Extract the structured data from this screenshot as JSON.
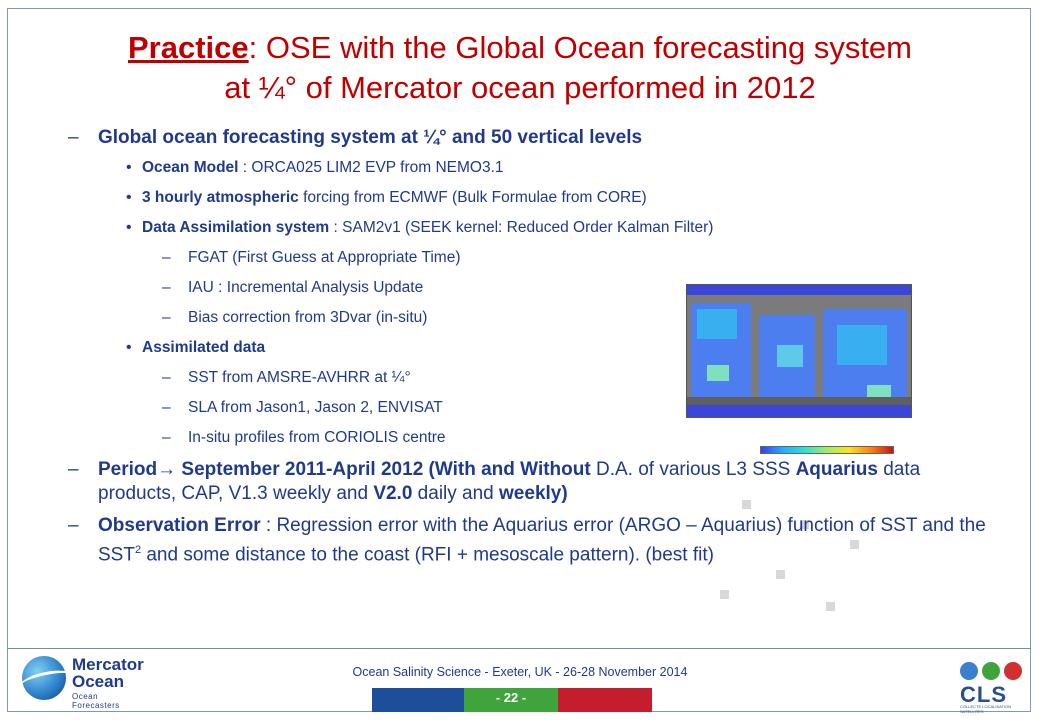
{
  "title": {
    "lead": "Practice",
    "rest_line1": ": OSE with the Global Ocean forecasting system",
    "line2": "at ¼° of Mercator ocean performed in 2012"
  },
  "bullets": {
    "system": {
      "dash": "–",
      "text": "Global ocean forecasting system at ¼° and 50 vertical levels"
    },
    "ocean_model": {
      "bold": "Ocean Model",
      "text": " : ORCA025 LIM2 EVP from NEMO3.1"
    },
    "forcing": {
      "bold": "3 hourly atmospheric",
      "text": " forcing from ECMWF (Bulk Formulae from CORE)"
    },
    "assim_system": {
      "bold": "Data Assimilation system",
      "text": " : SAM2v1 (SEEK kernel: Reduced Order Kalman Filter)"
    },
    "fgat": "FGAT (First Guess at Appropriate Time)",
    "iau": "IAU : Incremental  Analysis Update",
    "bias": "Bias correction from 3Dvar (in-situ)",
    "assimilated": {
      "bold": "Assimilated data"
    },
    "sst": "SST from AMSRE-AVHRR at ¼°",
    "sla": "SLA from Jason1, Jason 2, ENVISAT",
    "insitu": "In-situ profiles from CORIOLIS centre",
    "period": {
      "b1": "Period",
      "arrow": "→",
      "b2": " September 2011-April 2012 (With and Without",
      "n1": " D.A. of various L3 SSS ",
      "b3": "Aquarius",
      "n2": " data products, CAP, V1.3 weekly and ",
      "b4": "V2.0",
      "n3": " daily and ",
      "b5": "weekly)"
    },
    "obs_error": {
      "bold": "Observation Error",
      "text1": " : Regression error with the Aquarius error (ARGO – Aquarius) function of SST and the SST",
      "sup": "2",
      "text2": " and some distance to the coast (RFI + mesoscale pattern). (best fit)"
    }
  },
  "symbols": {
    "dash": "–",
    "bullet": "•"
  },
  "footer": {
    "text": "Ocean Salinity Science - Exeter, UK - 26-28 November 2014",
    "page": "- 22 -"
  },
  "logos": {
    "mercator": {
      "line1": "Mercator",
      "line2": "Ocean",
      "line3": "Ocean Forecasters",
      "icon": "globe-icon"
    },
    "cls": {
      "text": "CLS",
      "sub": "COLLECTE LOCALISATION SATELLITES"
    }
  },
  "colors": {
    "title": "#c00000",
    "body": "#1f3a8a",
    "bar_blue": "#1d4e9a",
    "bar_green": "#3fa43c",
    "bar_red": "#c41e2e"
  }
}
